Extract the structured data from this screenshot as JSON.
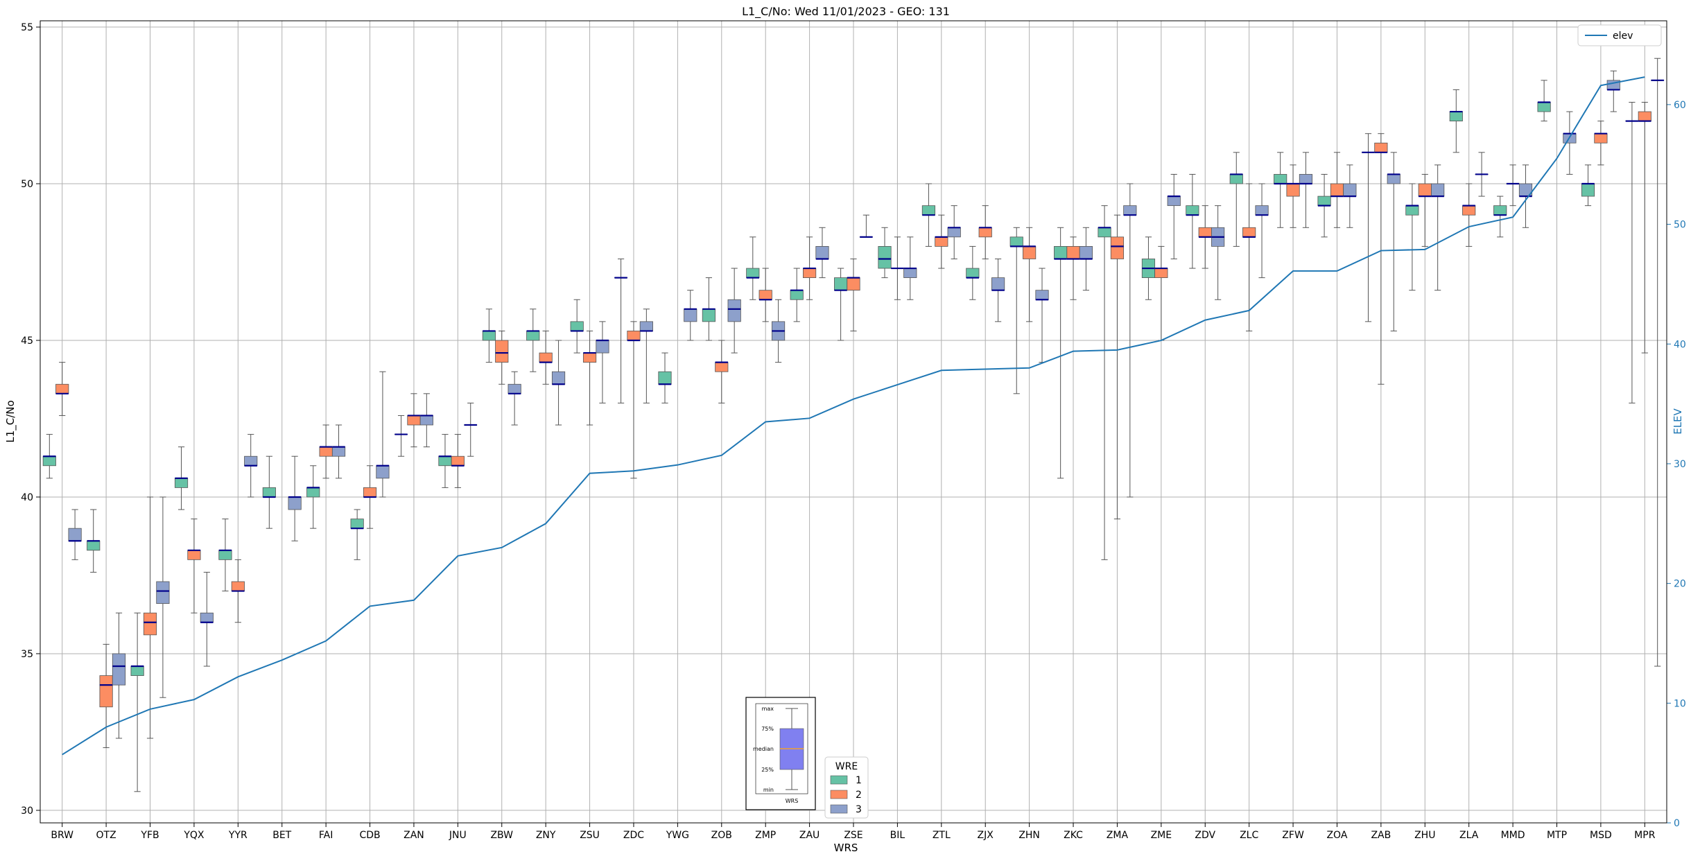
{
  "chart_data": {
    "type": "box",
    "title": "L1_C/No: Wed 11/01/2023 - GEO: 131",
    "xlabel": "WRS",
    "ylabel": "L1_C/No",
    "y2label": "ELEV",
    "ylim": [
      29.6,
      55.2
    ],
    "y2lim": [
      0,
      67
    ],
    "yticks": [
      30,
      35,
      40,
      45,
      50,
      55
    ],
    "y2ticks": [
      0,
      10,
      20,
      30,
      40,
      50,
      60
    ],
    "grid": true,
    "categories": [
      "BRW",
      "OTZ",
      "YFB",
      "YQX",
      "YYR",
      "BET",
      "FAI",
      "CDB",
      "ZAN",
      "JNU",
      "ZBW",
      "ZNY",
      "ZSU",
      "ZDC",
      "YWG",
      "ZOB",
      "ZMP",
      "ZAU",
      "ZSE",
      "BIL",
      "ZTL",
      "ZJX",
      "ZHN",
      "ZKC",
      "ZMA",
      "ZME",
      "ZDV",
      "ZLC",
      "ZFW",
      "ZOA",
      "ZAB",
      "ZHU",
      "ZLA",
      "MMD",
      "MTP",
      "MSD",
      "MPR"
    ],
    "wre_colors": {
      "1": "#66c2a5",
      "2": "#fc8d62",
      "3": "#8da0cb"
    },
    "median_color": "#00008b",
    "whisker_color": "#555555",
    "boxes": [
      {
        "wrs": "BRW",
        "wre": 1,
        "min": 40.6,
        "q1": 41.0,
        "median": 41.3,
        "q3": 41.3,
        "max": 42.0
      },
      {
        "wrs": "BRW",
        "wre": 2,
        "min": 42.6,
        "q1": 43.3,
        "median": 43.3,
        "q3": 43.6,
        "max": 44.3
      },
      {
        "wrs": "BRW",
        "wre": 3,
        "min": 38.0,
        "q1": 38.6,
        "median": 38.6,
        "q3": 39.0,
        "max": 39.6
      },
      {
        "wrs": "OTZ",
        "wre": 1,
        "min": 37.6,
        "q1": 38.3,
        "median": 38.6,
        "q3": 38.6,
        "max": 39.6
      },
      {
        "wrs": "OTZ",
        "wre": 2,
        "min": 32.0,
        "q1": 33.3,
        "median": 34.0,
        "q3": 34.3,
        "max": 35.3
      },
      {
        "wrs": "OTZ",
        "wre": 3,
        "min": 32.3,
        "q1": 34.0,
        "median": 34.6,
        "q3": 35.0,
        "max": 36.3
      },
      {
        "wrs": "YFB",
        "wre": 1,
        "min": 30.6,
        "q1": 34.3,
        "median": 34.6,
        "q3": 34.6,
        "max": 36.3
      },
      {
        "wrs": "YFB",
        "wre": 2,
        "min": 32.3,
        "q1": 35.6,
        "median": 36.0,
        "q3": 36.3,
        "max": 40.0
      },
      {
        "wrs": "YFB",
        "wre": 3,
        "min": 33.6,
        "q1": 36.6,
        "median": 37.0,
        "q3": 37.3,
        "max": 40.0
      },
      {
        "wrs": "YQX",
        "wre": 1,
        "min": 39.6,
        "q1": 40.3,
        "median": 40.6,
        "q3": 40.6,
        "max": 41.6
      },
      {
        "wrs": "YQX",
        "wre": 2,
        "min": 36.3,
        "q1": 38.0,
        "median": 38.3,
        "q3": 38.3,
        "max": 39.3
      },
      {
        "wrs": "YQX",
        "wre": 3,
        "min": 34.6,
        "q1": 36.0,
        "median": 36.0,
        "q3": 36.3,
        "max": 37.6
      },
      {
        "wrs": "YYR",
        "wre": 1,
        "min": 37.0,
        "q1": 38.0,
        "median": 38.3,
        "q3": 38.3,
        "max": 39.3
      },
      {
        "wrs": "YYR",
        "wre": 2,
        "min": 36.0,
        "q1": 37.0,
        "median": 37.0,
        "q3": 37.3,
        "max": 38.0
      },
      {
        "wrs": "YYR",
        "wre": 3,
        "min": 40.0,
        "q1": 41.0,
        "median": 41.0,
        "q3": 41.3,
        "max": 42.0
      },
      {
        "wrs": "BET",
        "wre": 1,
        "min": 39.0,
        "q1": 40.0,
        "median": 40.0,
        "q3": 40.3,
        "max": 41.3
      },
      {
        "wrs": "BET",
        "wre": 3,
        "min": 38.6,
        "q1": 39.6,
        "median": 40.0,
        "q3": 40.0,
        "max": 41.3
      },
      {
        "wrs": "FAI",
        "wre": 1,
        "min": 39.0,
        "q1": 40.0,
        "median": 40.3,
        "q3": 40.3,
        "max": 41.0
      },
      {
        "wrs": "FAI",
        "wre": 2,
        "min": 40.6,
        "q1": 41.3,
        "median": 41.6,
        "q3": 41.6,
        "max": 42.3
      },
      {
        "wrs": "FAI",
        "wre": 3,
        "min": 40.6,
        "q1": 41.3,
        "median": 41.6,
        "q3": 41.6,
        "max": 42.3
      },
      {
        "wrs": "CDB",
        "wre": 1,
        "min": 38.0,
        "q1": 39.0,
        "median": 39.0,
        "q3": 39.3,
        "max": 39.6
      },
      {
        "wrs": "CDB",
        "wre": 2,
        "min": 39.0,
        "q1": 40.0,
        "median": 40.0,
        "q3": 40.3,
        "max": 41.0
      },
      {
        "wrs": "CDB",
        "wre": 3,
        "min": 40.0,
        "q1": 40.6,
        "median": 41.0,
        "q3": 41.0,
        "max": 44.0
      },
      {
        "wrs": "ZAN",
        "wre": 1,
        "min": 41.3,
        "q1": 42.0,
        "median": 42.0,
        "q3": 42.0,
        "max": 42.6
      },
      {
        "wrs": "ZAN",
        "wre": 2,
        "min": 41.6,
        "q1": 42.3,
        "median": 42.6,
        "q3": 42.6,
        "max": 43.3
      },
      {
        "wrs": "ZAN",
        "wre": 3,
        "min": 41.6,
        "q1": 42.3,
        "median": 42.6,
        "q3": 42.6,
        "max": 43.3
      },
      {
        "wrs": "JNU",
        "wre": 1,
        "min": 40.3,
        "q1": 41.0,
        "median": 41.3,
        "q3": 41.3,
        "max": 42.0
      },
      {
        "wrs": "JNU",
        "wre": 2,
        "min": 40.3,
        "q1": 41.0,
        "median": 41.0,
        "q3": 41.3,
        "max": 42.0
      },
      {
        "wrs": "JNU",
        "wre": 3,
        "min": 41.3,
        "q1": 42.3,
        "median": 42.3,
        "q3": 42.3,
        "max": 43.0
      },
      {
        "wrs": "ZBW",
        "wre": 1,
        "min": 44.3,
        "q1": 45.0,
        "median": 45.3,
        "q3": 45.3,
        "max": 46.0
      },
      {
        "wrs": "ZBW",
        "wre": 2,
        "min": 43.6,
        "q1": 44.3,
        "median": 44.6,
        "q3": 45.0,
        "max": 45.3
      },
      {
        "wrs": "ZBW",
        "wre": 3,
        "min": 42.3,
        "q1": 43.3,
        "median": 43.3,
        "q3": 43.6,
        "max": 44.0
      },
      {
        "wrs": "ZNY",
        "wre": 1,
        "min": 44.0,
        "q1": 45.0,
        "median": 45.3,
        "q3": 45.3,
        "max": 46.0
      },
      {
        "wrs": "ZNY",
        "wre": 2,
        "min": 43.6,
        "q1": 44.3,
        "median": 44.3,
        "q3": 44.6,
        "max": 45.3
      },
      {
        "wrs": "ZNY",
        "wre": 3,
        "min": 42.3,
        "q1": 43.6,
        "median": 43.6,
        "q3": 44.0,
        "max": 45.0
      },
      {
        "wrs": "ZSU",
        "wre": 1,
        "min": 44.6,
        "q1": 45.3,
        "median": 45.3,
        "q3": 45.6,
        "max": 46.3
      },
      {
        "wrs": "ZSU",
        "wre": 2,
        "min": 42.3,
        "q1": 44.3,
        "median": 44.6,
        "q3": 44.6,
        "max": 45.3
      },
      {
        "wrs": "ZSU",
        "wre": 3,
        "min": 43.0,
        "q1": 44.6,
        "median": 45.0,
        "q3": 45.0,
        "max": 45.6
      },
      {
        "wrs": "ZDC",
        "wre": 1,
        "min": 43.0,
        "q1": 47.0,
        "median": 47.0,
        "q3": 47.0,
        "max": 47.6
      },
      {
        "wrs": "ZDC",
        "wre": 2,
        "min": 40.6,
        "q1": 45.0,
        "median": 45.0,
        "q3": 45.3,
        "max": 45.6
      },
      {
        "wrs": "ZDC",
        "wre": 3,
        "min": 43.0,
        "q1": 45.3,
        "median": 45.3,
        "q3": 45.6,
        "max": 46.0
      },
      {
        "wrs": "YWG",
        "wre": 1,
        "min": 43.0,
        "q1": 43.6,
        "median": 43.6,
        "q3": 44.0,
        "max": 44.6
      },
      {
        "wrs": "YWG",
        "wre": 3,
        "min": 45.0,
        "q1": 45.6,
        "median": 46.0,
        "q3": 46.0,
        "max": 46.6
      },
      {
        "wrs": "ZOB",
        "wre": 1,
        "min": 45.0,
        "q1": 45.6,
        "median": 46.0,
        "q3": 46.0,
        "max": 47.0
      },
      {
        "wrs": "ZOB",
        "wre": 2,
        "min": 43.0,
        "q1": 44.0,
        "median": 44.3,
        "q3": 44.3,
        "max": 45.0
      },
      {
        "wrs": "ZOB",
        "wre": 3,
        "min": 44.6,
        "q1": 45.6,
        "median": 46.0,
        "q3": 46.3,
        "max": 47.3
      },
      {
        "wrs": "ZMP",
        "wre": 1,
        "min": 46.3,
        "q1": 47.0,
        "median": 47.0,
        "q3": 47.3,
        "max": 48.3
      },
      {
        "wrs": "ZMP",
        "wre": 2,
        "min": 45.6,
        "q1": 46.3,
        "median": 46.3,
        "q3": 46.6,
        "max": 47.3
      },
      {
        "wrs": "ZMP",
        "wre": 3,
        "min": 44.3,
        "q1": 45.0,
        "median": 45.3,
        "q3": 45.6,
        "max": 46.3
      },
      {
        "wrs": "ZAU",
        "wre": 1,
        "min": 45.6,
        "q1": 46.3,
        "median": 46.6,
        "q3": 46.6,
        "max": 47.3
      },
      {
        "wrs": "ZAU",
        "wre": 2,
        "min": 46.3,
        "q1": 47.0,
        "median": 47.3,
        "q3": 47.3,
        "max": 48.3
      },
      {
        "wrs": "ZAU",
        "wre": 3,
        "min": 47.0,
        "q1": 47.6,
        "median": 47.6,
        "q3": 48.0,
        "max": 48.6
      },
      {
        "wrs": "ZSE",
        "wre": 1,
        "min": 45.0,
        "q1": 46.6,
        "median": 46.6,
        "q3": 47.0,
        "max": 47.3
      },
      {
        "wrs": "ZSE",
        "wre": 2,
        "min": 45.3,
        "q1": 46.6,
        "median": 47.0,
        "q3": 47.0,
        "max": 47.6
      },
      {
        "wrs": "ZSE",
        "wre": 3,
        "min": 48.3,
        "q1": 48.3,
        "median": 48.3,
        "q3": 48.3,
        "max": 49.0
      },
      {
        "wrs": "BIL",
        "wre": 1,
        "min": 47.0,
        "q1": 47.3,
        "median": 47.6,
        "q3": 48.0,
        "max": 48.6
      },
      {
        "wrs": "BIL",
        "wre": 2,
        "min": 46.3,
        "q1": 47.3,
        "median": 47.3,
        "q3": 47.3,
        "max": 48.3
      },
      {
        "wrs": "BIL",
        "wre": 3,
        "min": 46.3,
        "q1": 47.0,
        "median": 47.3,
        "q3": 47.3,
        "max": 48.3
      },
      {
        "wrs": "ZTL",
        "wre": 1,
        "min": 48.0,
        "q1": 49.0,
        "median": 49.0,
        "q3": 49.3,
        "max": 50.0
      },
      {
        "wrs": "ZTL",
        "wre": 2,
        "min": 47.3,
        "q1": 48.0,
        "median": 48.3,
        "q3": 48.3,
        "max": 49.0
      },
      {
        "wrs": "ZTL",
        "wre": 3,
        "min": 47.6,
        "q1": 48.3,
        "median": 48.6,
        "q3": 48.6,
        "max": 49.3
      },
      {
        "wrs": "ZJX",
        "wre": 1,
        "min": 46.3,
        "q1": 47.0,
        "median": 47.0,
        "q3": 47.3,
        "max": 48.0
      },
      {
        "wrs": "ZJX",
        "wre": 2,
        "min": 47.6,
        "q1": 48.3,
        "median": 48.6,
        "q3": 48.6,
        "max": 49.3
      },
      {
        "wrs": "ZJX",
        "wre": 3,
        "min": 45.6,
        "q1": 46.6,
        "median": 46.6,
        "q3": 47.0,
        "max": 47.6
      },
      {
        "wrs": "ZHN",
        "wre": 1,
        "min": 43.3,
        "q1": 48.0,
        "median": 48.0,
        "q3": 48.3,
        "max": 48.6
      },
      {
        "wrs": "ZHN",
        "wre": 2,
        "min": 45.6,
        "q1": 47.6,
        "median": 48.0,
        "q3": 48.0,
        "max": 48.6
      },
      {
        "wrs": "ZHN",
        "wre": 3,
        "min": 44.3,
        "q1": 46.3,
        "median": 46.3,
        "q3": 46.6,
        "max": 47.3
      },
      {
        "wrs": "ZKC",
        "wre": 1,
        "min": 40.6,
        "q1": 47.6,
        "median": 47.6,
        "q3": 48.0,
        "max": 48.6
      },
      {
        "wrs": "ZKC",
        "wre": 2,
        "min": 46.3,
        "q1": 47.6,
        "median": 47.6,
        "q3": 48.0,
        "max": 48.3
      },
      {
        "wrs": "ZKC",
        "wre": 3,
        "min": 46.6,
        "q1": 47.6,
        "median": 47.6,
        "q3": 48.0,
        "max": 48.6
      },
      {
        "wrs": "ZMA",
        "wre": 1,
        "min": 38.0,
        "q1": 48.3,
        "median": 48.6,
        "q3": 48.6,
        "max": 49.3
      },
      {
        "wrs": "ZMA",
        "wre": 2,
        "min": 39.3,
        "q1": 47.6,
        "median": 48.0,
        "q3": 48.3,
        "max": 49.0
      },
      {
        "wrs": "ZMA",
        "wre": 3,
        "min": 40.0,
        "q1": 49.0,
        "median": 49.0,
        "q3": 49.3,
        "max": 50.0
      },
      {
        "wrs": "ZME",
        "wre": 1,
        "min": 46.3,
        "q1": 47.0,
        "median": 47.3,
        "q3": 47.6,
        "max": 48.3
      },
      {
        "wrs": "ZME",
        "wre": 2,
        "min": 45.0,
        "q1": 47.0,
        "median": 47.3,
        "q3": 47.3,
        "max": 48.0
      },
      {
        "wrs": "ZME",
        "wre": 3,
        "min": 47.6,
        "q1": 49.3,
        "median": 49.6,
        "q3": 49.6,
        "max": 50.3
      },
      {
        "wrs": "ZDV",
        "wre": 1,
        "min": 47.3,
        "q1": 49.0,
        "median": 49.0,
        "q3": 49.3,
        "max": 50.3
      },
      {
        "wrs": "ZDV",
        "wre": 2,
        "min": 47.3,
        "q1": 48.3,
        "median": 48.3,
        "q3": 48.6,
        "max": 49.3
      },
      {
        "wrs": "ZDV",
        "wre": 3,
        "min": 46.3,
        "q1": 48.0,
        "median": 48.3,
        "q3": 48.6,
        "max": 49.3
      },
      {
        "wrs": "ZLC",
        "wre": 1,
        "min": 48.0,
        "q1": 50.0,
        "median": 50.3,
        "q3": 50.3,
        "max": 51.0
      },
      {
        "wrs": "ZLC",
        "wre": 2,
        "min": 45.3,
        "q1": 48.3,
        "median": 48.3,
        "q3": 48.6,
        "max": 50.0
      },
      {
        "wrs": "ZLC",
        "wre": 3,
        "min": 47.0,
        "q1": 49.0,
        "median": 49.0,
        "q3": 49.3,
        "max": 50.0
      },
      {
        "wrs": "ZFW",
        "wre": 1,
        "min": 48.6,
        "q1": 50.0,
        "median": 50.0,
        "q3": 50.3,
        "max": 51.0
      },
      {
        "wrs": "ZFW",
        "wre": 2,
        "min": 48.6,
        "q1": 49.6,
        "median": 50.0,
        "q3": 50.0,
        "max": 50.6
      },
      {
        "wrs": "ZFW",
        "wre": 3,
        "min": 48.6,
        "q1": 50.0,
        "median": 50.0,
        "q3": 50.3,
        "max": 51.0
      },
      {
        "wrs": "ZOA",
        "wre": 1,
        "min": 48.3,
        "q1": 49.3,
        "median": 49.3,
        "q3": 49.6,
        "max": 50.3
      },
      {
        "wrs": "ZOA",
        "wre": 2,
        "min": 48.6,
        "q1": 49.6,
        "median": 49.6,
        "q3": 50.0,
        "max": 51.0
      },
      {
        "wrs": "ZOA",
        "wre": 3,
        "min": 48.6,
        "q1": 49.6,
        "median": 49.6,
        "q3": 50.0,
        "max": 50.6
      },
      {
        "wrs": "ZAB",
        "wre": 1,
        "min": 45.6,
        "q1": 51.0,
        "median": 51.0,
        "q3": 51.0,
        "max": 51.6
      },
      {
        "wrs": "ZAB",
        "wre": 2,
        "min": 43.6,
        "q1": 51.0,
        "median": 51.0,
        "q3": 51.3,
        "max": 51.6
      },
      {
        "wrs": "ZAB",
        "wre": 3,
        "min": 45.3,
        "q1": 50.0,
        "median": 50.3,
        "q3": 50.3,
        "max": 51.0
      },
      {
        "wrs": "ZHU",
        "wre": 1,
        "min": 46.6,
        "q1": 49.0,
        "median": 49.3,
        "q3": 49.3,
        "max": 50.0
      },
      {
        "wrs": "ZHU",
        "wre": 2,
        "min": 48.0,
        "q1": 49.6,
        "median": 49.6,
        "q3": 50.0,
        "max": 50.3
      },
      {
        "wrs": "ZHU",
        "wre": 3,
        "min": 46.6,
        "q1": 49.6,
        "median": 49.6,
        "q3": 50.0,
        "max": 50.6
      },
      {
        "wrs": "ZLA",
        "wre": 1,
        "min": 51.0,
        "q1": 52.0,
        "median": 52.3,
        "q3": 52.3,
        "max": 53.0
      },
      {
        "wrs": "ZLA",
        "wre": 2,
        "min": 48.0,
        "q1": 49.0,
        "median": 49.3,
        "q3": 49.3,
        "max": 50.0
      },
      {
        "wrs": "ZLA",
        "wre": 3,
        "min": 49.6,
        "q1": 50.3,
        "median": 50.3,
        "q3": 50.3,
        "max": 51.0
      },
      {
        "wrs": "MMD",
        "wre": 1,
        "min": 48.3,
        "q1": 49.0,
        "median": 49.0,
        "q3": 49.3,
        "max": 49.6
      },
      {
        "wrs": "MMD",
        "wre": 2,
        "min": 49.3,
        "q1": 50.0,
        "median": 50.0,
        "q3": 50.0,
        "max": 50.6
      },
      {
        "wrs": "MMD",
        "wre": 3,
        "min": 48.6,
        "q1": 49.6,
        "median": 49.6,
        "q3": 50.0,
        "max": 50.6
      },
      {
        "wrs": "MTP",
        "wre": 1,
        "min": 52.0,
        "q1": 52.3,
        "median": 52.6,
        "q3": 52.6,
        "max": 53.3
      },
      {
        "wrs": "MTP",
        "wre": 3,
        "min": 50.3,
        "q1": 51.3,
        "median": 51.6,
        "q3": 51.6,
        "max": 52.3
      },
      {
        "wrs": "MSD",
        "wre": 1,
        "min": 49.3,
        "q1": 49.6,
        "median": 50.0,
        "q3": 50.0,
        "max": 50.6
      },
      {
        "wrs": "MSD",
        "wre": 2,
        "min": 50.6,
        "q1": 51.3,
        "median": 51.6,
        "q3": 51.6,
        "max": 52.0
      },
      {
        "wrs": "MSD",
        "wre": 3,
        "min": 52.3,
        "q1": 53.0,
        "median": 53.0,
        "q3": 53.3,
        "max": 53.6
      },
      {
        "wrs": "MPR",
        "wre": 1,
        "min": 43.0,
        "q1": 52.0,
        "median": 52.0,
        "q3": 52.0,
        "max": 52.6
      },
      {
        "wrs": "MPR",
        "wre": 2,
        "min": 44.6,
        "q1": 52.0,
        "median": 52.0,
        "q3": 52.3,
        "max": 52.6
      },
      {
        "wrs": "MPR",
        "wre": 3,
        "min": 34.6,
        "q1": 53.3,
        "median": 53.3,
        "q3": 53.3,
        "max": 54.0
      }
    ],
    "series": [
      {
        "name": "elev",
        "axis": "right",
        "color": "#1f77b4",
        "values": [
          5.7,
          8.0,
          9.5,
          10.3,
          12.2,
          13.6,
          15.2,
          18.1,
          18.6,
          22.3,
          23.0,
          25.0,
          29.2,
          29.4,
          29.9,
          30.7,
          33.5,
          33.8,
          35.4,
          36.6,
          37.8,
          37.9,
          38.0,
          39.4,
          39.5,
          40.3,
          42.0,
          42.8,
          46.1,
          46.1,
          47.8,
          47.9,
          49.8,
          50.6,
          55.5,
          61.6,
          62.3
        ]
      }
    ],
    "legend_wre": {
      "title": "WRE",
      "entries": [
        "1",
        "2",
        "3"
      ],
      "placement": "bottom-center"
    },
    "legend_elev": {
      "label": "elev",
      "placement": "top-right"
    },
    "inset_legend": {
      "labels": [
        "max",
        "75%",
        "median",
        "25%",
        "min"
      ],
      "xlabel": "WRS"
    }
  }
}
